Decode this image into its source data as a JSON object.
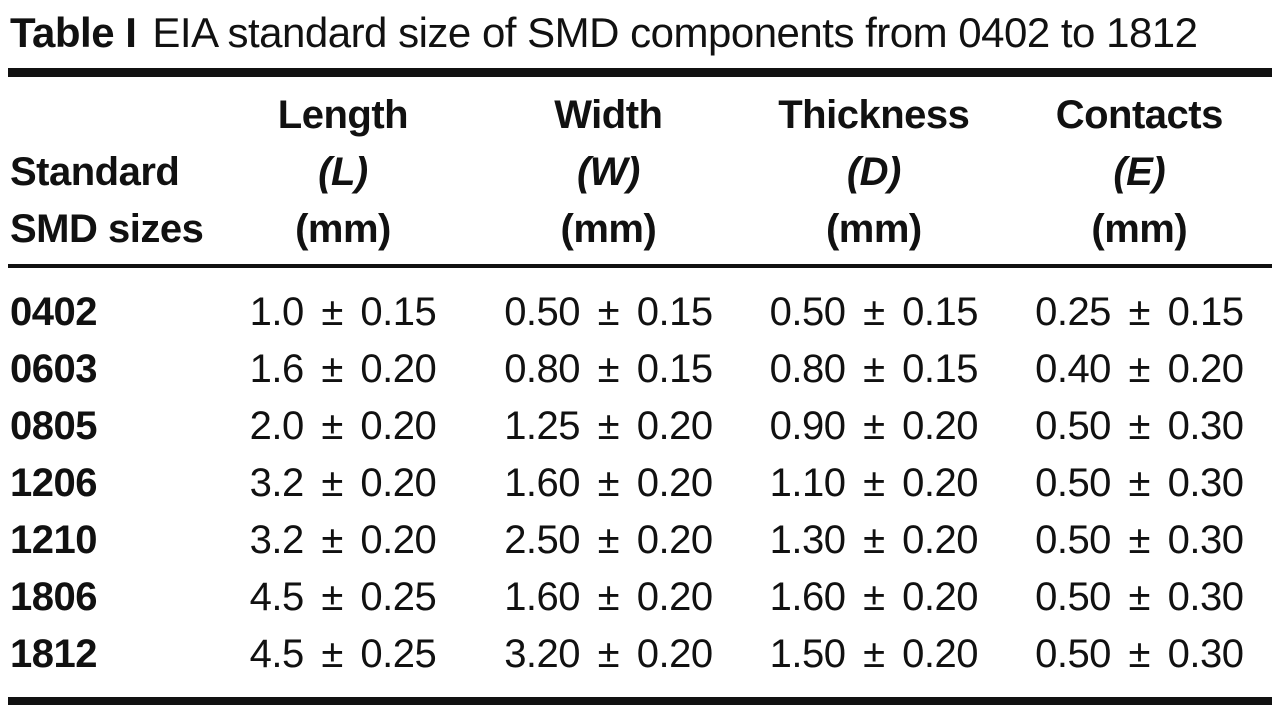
{
  "title": {
    "label": "Table I",
    "caption": "EIA standard size of SMD components from 0402 to 1812"
  },
  "table": {
    "row_header": {
      "line1": "Standard",
      "line2": "SMD sizes"
    },
    "columns": [
      {
        "name": "Length",
        "symbol": "(L)",
        "unit": "(mm)"
      },
      {
        "name": "Width",
        "symbol": "(W)",
        "unit": "(mm)"
      },
      {
        "name": "Thickness",
        "symbol": "(D)",
        "unit": "(mm)"
      },
      {
        "name": "Contacts",
        "symbol": "(E)",
        "unit": "(mm)"
      }
    ],
    "rows": [
      {
        "size": "0402",
        "length": "1.0 ± 0.15",
        "width": "0.50 ± 0.15",
        "thickness": "0.50 ± 0.15",
        "contacts": "0.25 ± 0.15"
      },
      {
        "size": "0603",
        "length": "1.6 ± 0.20",
        "width": "0.80 ± 0.15",
        "thickness": "0.80 ± 0.15",
        "contacts": "0.40 ± 0.20"
      },
      {
        "size": "0805",
        "length": "2.0 ± 0.20",
        "width": "1.25 ± 0.20",
        "thickness": "0.90 ± 0.20",
        "contacts": "0.50 ± 0.30"
      },
      {
        "size": "1206",
        "length": "3.2 ± 0.20",
        "width": "1.60 ± 0.20",
        "thickness": "1.10 ± 0.20",
        "contacts": "0.50 ± 0.30"
      },
      {
        "size": "1210",
        "length": "3.2 ± 0.20",
        "width": "2.50 ± 0.20",
        "thickness": "1.30 ± 0.20",
        "contacts": "0.50 ± 0.30"
      },
      {
        "size": "1806",
        "length": "4.5 ± 0.25",
        "width": "1.60 ± 0.20",
        "thickness": "1.60 ± 0.20",
        "contacts": "0.50 ± 0.30"
      },
      {
        "size": "1812",
        "length": "4.5 ± 0.25",
        "width": "3.20 ± 0.20",
        "thickness": "1.50 ± 0.20",
        "contacts": "0.50 ± 0.30"
      }
    ]
  },
  "colors": {
    "text": "#111111",
    "background": "#ffffff",
    "rule": "#111111"
  }
}
